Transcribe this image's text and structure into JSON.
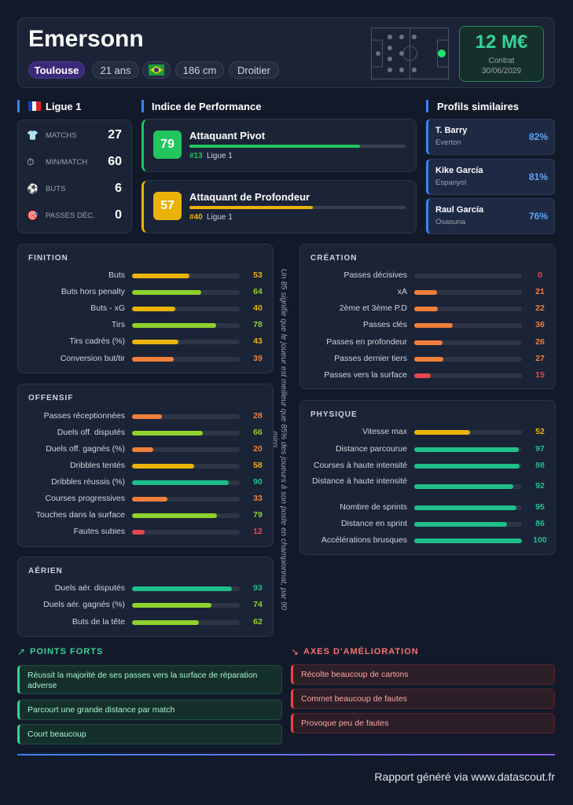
{
  "header": {
    "name": "Emersonn",
    "club": "Toulouse",
    "tags": [
      "21 ans",
      "186 cm",
      "Droitier"
    ],
    "market_value": "12 M€",
    "contract_label": "Contrat",
    "contract_date": "30/06/2029"
  },
  "league": {
    "name": "Ligue 1",
    "stats": [
      {
        "label": "MATCHS",
        "value": 27
      },
      {
        "label": "MIN/MATCH",
        "value": 60
      },
      {
        "label": "BUTS",
        "value": 6
      },
      {
        "label": "PASSES DÉC.",
        "value": 0
      }
    ]
  },
  "performance": {
    "title": "Indice de Performance",
    "items": [
      {
        "score": 79,
        "role": "Attaquant Pivot",
        "rank": "#13",
        "league": "Ligue 1",
        "color": "#22c55e"
      },
      {
        "score": 57,
        "role": "Attaquant de Profondeur",
        "rank": "#40",
        "league": "Ligue 1",
        "color": "#eab308"
      }
    ]
  },
  "similar": {
    "title": "Profils similaires",
    "players": [
      {
        "name": "T. Barry",
        "club": "Everton",
        "similarity": "82%"
      },
      {
        "name": "Kike García",
        "club": "Espanyol",
        "similarity": "81%"
      },
      {
        "name": "Raul García",
        "club": "Osasuna",
        "similarity": "76%"
      }
    ]
  },
  "value_range": [
    0,
    100
  ],
  "scale_colors": [
    {
      "from": 0,
      "color": "#e5484d"
    },
    {
      "from": 20,
      "color": "#f0803c"
    },
    {
      "from": 40,
      "color": "#eab308"
    },
    {
      "from": 60,
      "color": "#8fd12e"
    },
    {
      "from": 80,
      "color": "#1fbf8a"
    }
  ],
  "note": "Un 85 signifie que le joueur est meilleur que 85% des joueurs à son poste en championnat, par 90 mins",
  "sections": [
    {
      "title": "FINITION",
      "stats": [
        {
          "label": "Buts",
          "value": 53
        },
        {
          "label": "Buts hors penalty",
          "value": 64
        },
        {
          "label": "Buts - xG",
          "value": 40
        },
        {
          "label": "Tirs",
          "value": 78
        },
        {
          "label": "Tirs cadrés (%)",
          "value": 43
        },
        {
          "label": "Conversion but/tir",
          "value": 39
        }
      ]
    },
    {
      "title": "OFFENSIF",
      "stats": [
        {
          "label": "Passes réceptionnées",
          "value": 28
        },
        {
          "label": "Duels off. disputés",
          "value": 66
        },
        {
          "label": "Duels off. gagnés (%)",
          "value": 20
        },
        {
          "label": "Dribbles tentés",
          "value": 58
        },
        {
          "label": "Dribbles réussis (%)",
          "value": 90
        },
        {
          "label": "Courses progressives",
          "value": 33
        },
        {
          "label": "Touches dans la surface",
          "value": 79
        },
        {
          "label": "Fautes subies",
          "value": 12
        }
      ]
    },
    {
      "title": "AÉRIEN",
      "stats": [
        {
          "label": "Duels aér. disputés",
          "value": 93
        },
        {
          "label": "Duels aér. gagnés (%)",
          "value": 74
        },
        {
          "label": "Buts de la tête",
          "value": 62
        }
      ]
    },
    {
      "title": "CRÉATION",
      "stats": [
        {
          "label": "Passes décisives",
          "value": 0
        },
        {
          "label": "xA",
          "value": 21
        },
        {
          "label": "2ème et 3ème P.D",
          "value": 22
        },
        {
          "label": "Passes clés",
          "value": 36
        },
        {
          "label": "Passes en profondeur",
          "value": 26
        },
        {
          "label": "Passes dernier tiers",
          "value": 27
        },
        {
          "label": "Passes vers la surface",
          "value": 15
        }
      ]
    },
    {
      "title": "PHYSIQUE",
      "stats": [
        {
          "label": "Vitesse max",
          "value": 52
        },
        {
          "label": "Distance parcourue",
          "value": 97
        },
        {
          "label": "Courses à haute intensité",
          "value": 98
        },
        {
          "label": "Distance à haute intensité",
          "value": 92
        },
        {
          "label": "Nombre de sprints",
          "value": 95
        },
        {
          "label": "Distance en sprint",
          "value": 86
        },
        {
          "label": "Accélérations brusques",
          "value": 100
        }
      ]
    }
  ],
  "strengths": {
    "title": "POINTS FORTS",
    "items": [
      "Réussit la majorité de ses passes vers la surface de réparation adverse",
      "Parcourt une grande distance par match",
      "Court beaucoup"
    ]
  },
  "improvements": {
    "title": "AXES D'AMÉLIORATION",
    "items": [
      "Récolte beaucoup de cartons",
      "Commet beaucoup de fautes",
      "Provoque peu de fautes"
    ]
  },
  "footer": "Rapport généré via www.datascout.fr"
}
